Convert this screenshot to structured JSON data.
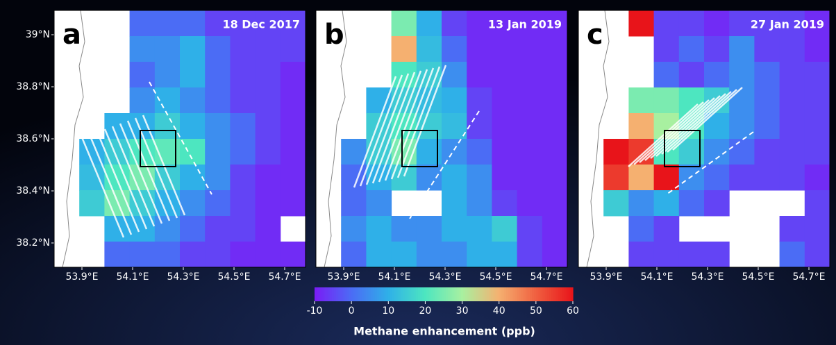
{
  "lat_ticks": [
    {
      "value": 39,
      "label": "39°N"
    },
    {
      "value": 38.8,
      "label": "38.8°N"
    },
    {
      "value": 38.6,
      "label": "38.6°N"
    },
    {
      "value": 38.4,
      "label": "38.4°N"
    },
    {
      "value": 38.2,
      "label": "38.2°N"
    }
  ],
  "lon_ticks": [
    {
      "value": 53.9,
      "label": "53.9°E"
    },
    {
      "value": 54.1,
      "label": "54.1°E"
    },
    {
      "value": 54.3,
      "label": "54.3°E"
    },
    {
      "value": 54.5,
      "label": "54.5°E"
    },
    {
      "value": 54.7,
      "label": "54.7°E"
    }
  ],
  "panels": [
    {
      "label": "a",
      "date": "18 Dec 2017",
      "cells": [
        [
          null,
          null,
          null,
          0,
          0,
          0,
          -5,
          -5,
          -5,
          -5
        ],
        [
          null,
          null,
          null,
          5,
          5,
          10,
          0,
          -5,
          -5,
          -5
        ],
        [
          null,
          null,
          null,
          0,
          5,
          10,
          0,
          -5,
          -5,
          -8
        ],
        [
          null,
          null,
          null,
          5,
          10,
          5,
          0,
          -5,
          -5,
          -8
        ],
        [
          null,
          null,
          10,
          10,
          15,
          10,
          5,
          0,
          -5,
          -8
        ],
        [
          null,
          10,
          15,
          20,
          22,
          20,
          5,
          0,
          -5,
          -8
        ],
        [
          null,
          12,
          20,
          25,
          15,
          10,
          5,
          -5,
          -8,
          -8
        ],
        [
          null,
          15,
          25,
          15,
          10,
          5,
          0,
          -5,
          -8,
          -8
        ],
        [
          null,
          null,
          10,
          10,
          5,
          0,
          -5,
          -5,
          -8,
          null
        ],
        [
          null,
          null,
          0,
          0,
          0,
          -5,
          -5,
          -8,
          -8,
          -8
        ]
      ]
    },
    {
      "label": "b",
      "date": "13 Jan 2019",
      "cells": [
        [
          null,
          null,
          null,
          25,
          10,
          -5,
          -8,
          -8,
          -8,
          -8
        ],
        [
          null,
          null,
          null,
          40,
          12,
          0,
          -8,
          -8,
          -8,
          -8
        ],
        [
          null,
          null,
          null,
          20,
          15,
          5,
          -8,
          -8,
          -8,
          -8
        ],
        [
          null,
          null,
          10,
          15,
          12,
          10,
          -5,
          -8,
          -8,
          -8
        ],
        [
          null,
          null,
          15,
          20,
          15,
          12,
          -5,
          -8,
          -8,
          -8
        ],
        [
          null,
          5,
          15,
          25,
          10,
          5,
          0,
          -8,
          -8,
          -8
        ],
        [
          null,
          0,
          10,
          15,
          5,
          10,
          5,
          -8,
          -8,
          -8
        ],
        [
          null,
          0,
          5,
          null,
          null,
          10,
          5,
          -5,
          -8,
          -8
        ],
        [
          null,
          5,
          10,
          5,
          5,
          10,
          10,
          15,
          -5,
          -8
        ],
        [
          null,
          0,
          10,
          10,
          5,
          5,
          10,
          10,
          -5,
          -8
        ]
      ]
    },
    {
      "label": "c",
      "date": "27 Jan 2019",
      "cells": [
        [
          null,
          null,
          60,
          -5,
          -5,
          -8,
          -5,
          -5,
          -5,
          -8
        ],
        [
          null,
          null,
          null,
          -5,
          0,
          -5,
          5,
          -5,
          -5,
          -8
        ],
        [
          null,
          null,
          null,
          0,
          -5,
          0,
          5,
          0,
          -5,
          -5
        ],
        [
          null,
          null,
          25,
          25,
          20,
          15,
          5,
          0,
          -5,
          -5
        ],
        [
          null,
          null,
          40,
          30,
          20,
          10,
          5,
          0,
          -5,
          -5
        ],
        [
          null,
          60,
          55,
          20,
          15,
          5,
          0,
          -5,
          -5,
          -5
        ],
        [
          null,
          55,
          40,
          60,
          5,
          0,
          -5,
          -5,
          -5,
          -8
        ],
        [
          null,
          15,
          5,
          10,
          0,
          -5,
          null,
          null,
          null,
          -5
        ],
        [
          null,
          null,
          0,
          -5,
          null,
          null,
          null,
          null,
          -5,
          -5
        ],
        [
          null,
          null,
          -5,
          -5,
          -5,
          -5,
          null,
          null,
          0,
          -5
        ]
      ]
    }
  ],
  "colorbar": {
    "title": "Methane enhancement (ppb)",
    "range": [
      -10,
      60
    ],
    "ticks": [
      -10,
      0,
      10,
      20,
      30,
      40,
      50,
      60
    ],
    "colors": [
      "#7a1cf5",
      "#4b6cf5",
      "#2fb0e8",
      "#4de6c0",
      "#a8f0a0",
      "#f5b070",
      "#f06040",
      "#e8141a"
    ]
  }
}
